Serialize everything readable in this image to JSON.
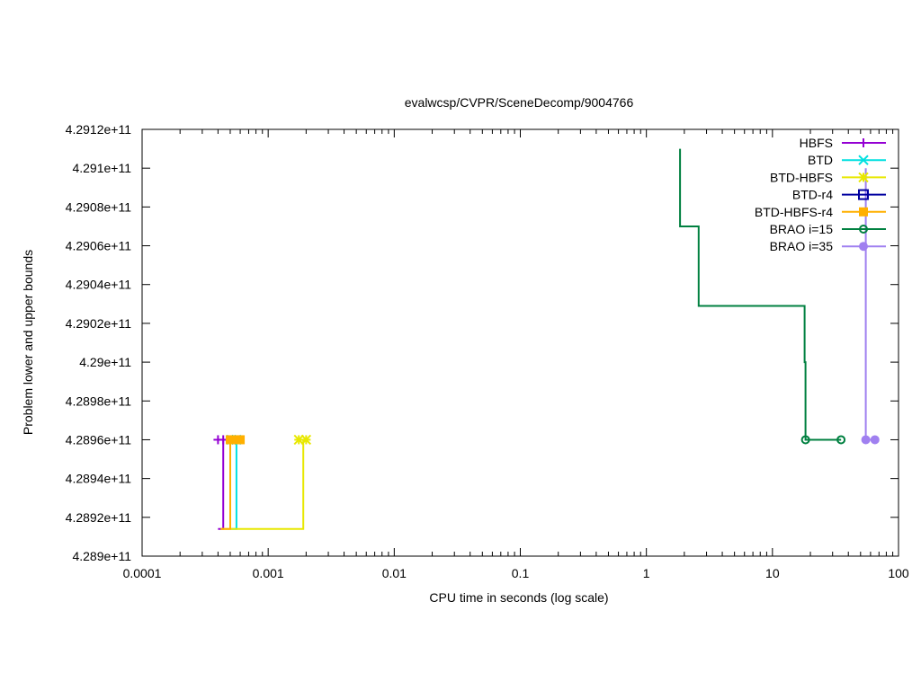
{
  "chart_data": {
    "type": "line",
    "title": "evalwcsp/CVPR/SceneDecomp/9004766",
    "xlabel": "CPU time in seconds (log scale)",
    "ylabel": "Problem lower and upper bounds",
    "x_scale": "log",
    "xlim": [
      0.0001,
      100
    ],
    "ylim": [
      428900000000,
      429120000000
    ],
    "grid": false,
    "legend_position": "top-right",
    "x_ticks": [
      {
        "value": 0.0001,
        "label": "0.0001"
      },
      {
        "value": 0.001,
        "label": "0.001"
      },
      {
        "value": 0.01,
        "label": "0.01"
      },
      {
        "value": 0.1,
        "label": "0.1"
      },
      {
        "value": 1,
        "label": "1"
      },
      {
        "value": 10,
        "label": "10"
      },
      {
        "value": 100,
        "label": "100"
      }
    ],
    "y_ticks": [
      {
        "value": 428900000000,
        "label": "4.289e+11"
      },
      {
        "value": 428920000000,
        "label": "4.2892e+11"
      },
      {
        "value": 428940000000,
        "label": "4.2894e+11"
      },
      {
        "value": 428960000000,
        "label": "4.2896e+11"
      },
      {
        "value": 428980000000,
        "label": "4.2898e+11"
      },
      {
        "value": 429000000000,
        "label": "4.29e+11"
      },
      {
        "value": 429020000000,
        "label": "4.2902e+11"
      },
      {
        "value": 429040000000,
        "label": "4.2904e+11"
      },
      {
        "value": 429060000000,
        "label": "4.2906e+11"
      },
      {
        "value": 429080000000,
        "label": "4.2908e+11"
      },
      {
        "value": 429100000000,
        "label": "4.291e+11"
      },
      {
        "value": 429120000000,
        "label": "4.2912e+11"
      }
    ],
    "series": [
      {
        "name": "HBFS",
        "color": "#9400d3",
        "marker": "plus",
        "upper": [
          [
            0.0004,
            428960000000
          ],
          [
            0.00044,
            428960000000
          ]
        ],
        "lower": [
          [
            0.0004,
            428914000000
          ],
          [
            0.00044,
            428914000000
          ],
          [
            0.00044,
            428960000000
          ]
        ]
      },
      {
        "name": "BTD",
        "color": "#00e0e0",
        "marker": "cross",
        "upper": [
          [
            0.00051,
            428960000000
          ],
          [
            0.00056,
            428960000000
          ]
        ],
        "lower": [
          [
            0.00051,
            428914000000
          ],
          [
            0.00056,
            428914000000
          ],
          [
            0.00056,
            428960000000
          ]
        ]
      },
      {
        "name": "BTD-HBFS",
        "color": "#e8e800",
        "marker": "star",
        "upper": [
          [
            0.00175,
            428960000000
          ],
          [
            0.002,
            428960000000
          ]
        ],
        "lower": [
          [
            0.00042,
            428914000000
          ],
          [
            0.0019,
            428914000000
          ],
          [
            0.0019,
            428960000000
          ]
        ]
      },
      {
        "name": "BTD-r4",
        "color": "#0000a0",
        "marker": "open-square",
        "upper": [],
        "lower": []
      },
      {
        "name": "BTD-HBFS-r4",
        "color": "#ffb000",
        "marker": "filled-square",
        "upper": [
          [
            0.0005,
            428960000000
          ],
          [
            0.00055,
            428960000000
          ],
          [
            0.0006,
            428960000000
          ]
        ],
        "lower": [
          [
            0.00042,
            428914000000
          ],
          [
            0.0005,
            428914000000
          ],
          [
            0.0005,
            428960000000
          ]
        ]
      },
      {
        "name": "BRAO i=15",
        "color": "#008040",
        "marker": "open-circle",
        "upper": [
          [
            1.85,
            429110000000
          ],
          [
            1.85,
            429070000000
          ],
          [
            2.6,
            429070000000
          ],
          [
            2.6,
            429029000000
          ],
          [
            18.0,
            429029000000
          ],
          [
            18.0,
            429000000000
          ],
          [
            18.3,
            429000000000
          ],
          [
            18.3,
            428960000000
          ],
          [
            35.0,
            428960000000
          ]
        ],
        "lower": [
          [
            18.3,
            428960000000
          ],
          [
            35.0,
            428960000000
          ]
        ],
        "points": [
          [
            18.3,
            428960000000
          ],
          [
            35.0,
            428960000000
          ]
        ]
      },
      {
        "name": "BRAO i=35",
        "color": "#a080f0",
        "marker": "filled-circle",
        "upper": [
          [
            55.0,
            429100000000
          ],
          [
            55.0,
            428960000000
          ],
          [
            65.0,
            428960000000
          ]
        ],
        "lower": [
          [
            55.0,
            428960000000
          ],
          [
            65.0,
            428960000000
          ]
        ],
        "points": [
          [
            55.0,
            428960000000
          ],
          [
            65.0,
            428960000000
          ]
        ]
      }
    ]
  }
}
